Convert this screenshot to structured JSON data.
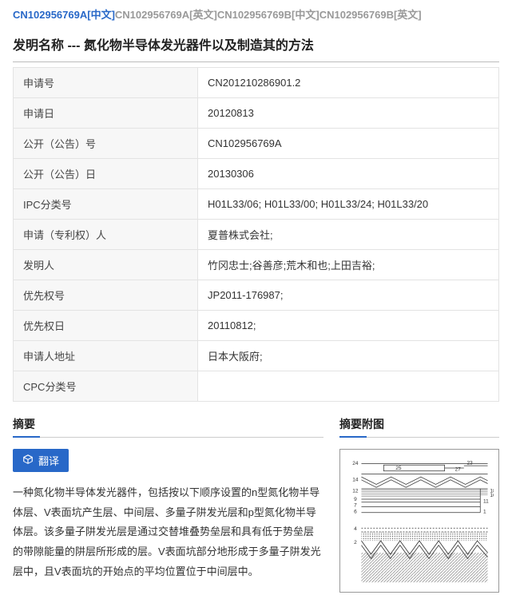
{
  "topLinks": [
    {
      "label": "CN102956769A[中文]",
      "active": true
    },
    {
      "label": "CN102956769A[英文]",
      "active": false
    },
    {
      "label": "CN102956769B[中文]",
      "active": false
    },
    {
      "label": "CN102956769B[英文]",
      "active": false
    }
  ],
  "title": "发明名称 ---  氮化物半导体发光器件以及制造其的方法",
  "rows": [
    {
      "label": "申请号",
      "value": "CN201210286901.2"
    },
    {
      "label": "申请日",
      "value": "20120813"
    },
    {
      "label": "公开（公告）号",
      "value": "CN102956769A"
    },
    {
      "label": "公开（公告）日",
      "value": "20130306"
    },
    {
      "label": "IPC分类号",
      "value": "H01L33/06; H01L33/00; H01L33/24; H01L33/20"
    },
    {
      "label": "申请（专利权）人",
      "value": "夏普株式会社;"
    },
    {
      "label": "发明人",
      "value": "竹冈忠士;谷善彦;荒木和也;上田吉裕;"
    },
    {
      "label": "优先权号",
      "value": "JP2011-176987;"
    },
    {
      "label": "优先权日",
      "value": "20110812;"
    },
    {
      "label": "申请人地址",
      "value": "日本大阪府;"
    },
    {
      "label": "CPC分类号",
      "value": ""
    }
  ],
  "abstractTitle": "摘要",
  "figureTitle": "摘要附图",
  "translateLabel": "翻译",
  "abstractText": "一种氮化物半导体发光器件，包括按以下顺序设置的n型氮化物半导体层、V表面坑产生层、中间层、多量子阱发光层和p型氮化物半导体层。该多量子阱发光层是通过交替堆叠势垒层和具有低于势垒层的带隙能量的阱层所形成的层。V表面坑部分地形成于多量子阱发光层中，且V表面坑的开始点的平均位置位于中间层中。",
  "figure": {
    "strokeColor": "#333333",
    "hatchColor": "#555555",
    "bgColor": "#ffffff",
    "topLabels": [
      "25",
      "23",
      "27"
    ],
    "sideLabels": [
      "24",
      "14",
      "12",
      "9",
      "7",
      "6",
      "4",
      "2"
    ]
  }
}
